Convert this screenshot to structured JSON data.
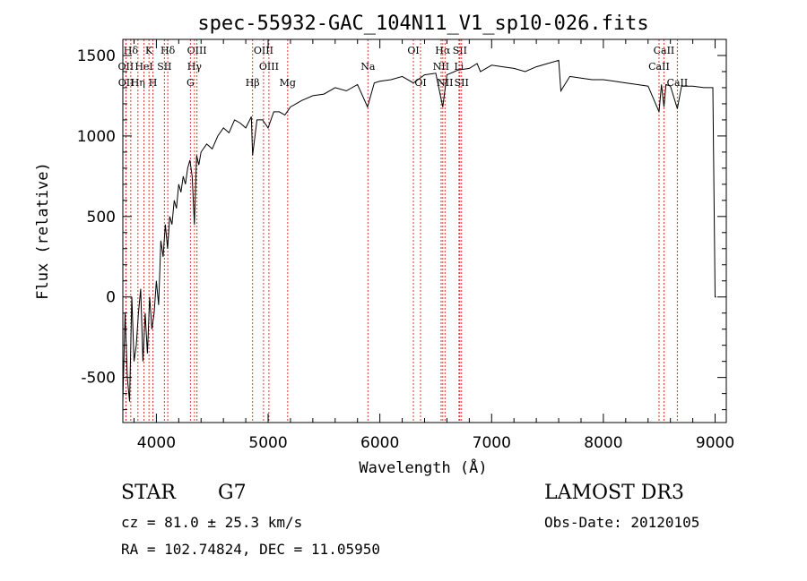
{
  "chart_data": {
    "type": "line",
    "title": "spec-55932-GAC_104N11_V1_sp10-026.fits",
    "xlabel": "Wavelength (Å)",
    "ylabel": "Flux (relative)",
    "xlim": [
      3700,
      9100
    ],
    "ylim": [
      -780,
      1600
    ],
    "x_ticks": [
      4000,
      5000,
      6000,
      7000,
      8000,
      9000
    ],
    "y_ticks": [
      -500,
      0,
      500,
      1000,
      1500
    ],
    "grid": false,
    "series": [
      {
        "name": "flux",
        "x": [
          3700,
          3720,
          3740,
          3760,
          3780,
          3800,
          3820,
          3840,
          3860,
          3880,
          3900,
          3920,
          3940,
          3960,
          3980,
          4000,
          4020,
          4040,
          4060,
          4080,
          4100,
          4120,
          4140,
          4160,
          4180,
          4200,
          4220,
          4240,
          4260,
          4280,
          4300,
          4320,
          4340,
          4360,
          4380,
          4400,
          4450,
          4500,
          4550,
          4600,
          4650,
          4700,
          4750,
          4800,
          4850,
          4861,
          4900,
          4950,
          5000,
          5050,
          5100,
          5150,
          5200,
          5250,
          5300,
          5400,
          5500,
          5600,
          5700,
          5800,
          5890,
          5950,
          6000,
          6100,
          6200,
          6300,
          6400,
          6500,
          6563,
          6600,
          6700,
          6800,
          6870,
          6900,
          7000,
          7100,
          7200,
          7300,
          7400,
          7500,
          7600,
          7620,
          7700,
          7800,
          7900,
          8000,
          8100,
          8200,
          8300,
          8400,
          8498,
          8520,
          8542,
          8560,
          8600,
          8662,
          8700,
          8800,
          8900,
          8980,
          9000,
          9010
        ],
        "values": [
          -650,
          -100,
          -500,
          -650,
          0,
          -400,
          -300,
          -100,
          50,
          -400,
          -100,
          -350,
          0,
          -200,
          -100,
          100,
          -50,
          350,
          250,
          450,
          300,
          500,
          450,
          600,
          550,
          700,
          650,
          750,
          700,
          800,
          850,
          750,
          450,
          880,
          820,
          900,
          950,
          920,
          1000,
          1050,
          1020,
          1100,
          1080,
          1050,
          1120,
          880,
          1100,
          1100,
          1050,
          1150,
          1150,
          1130,
          1180,
          1200,
          1220,
          1250,
          1260,
          1300,
          1280,
          1320,
          1180,
          1330,
          1340,
          1350,
          1370,
          1330,
          1380,
          1390,
          1180,
          1380,
          1410,
          1420,
          1450,
          1400,
          1440,
          1430,
          1420,
          1400,
          1430,
          1450,
          1470,
          1280,
          1370,
          1360,
          1350,
          1350,
          1340,
          1330,
          1320,
          1310,
          1150,
          1320,
          1180,
          1320,
          1310,
          1170,
          1310,
          1310,
          1300,
          1300,
          0,
          0
        ]
      }
    ],
    "line_markers": [
      {
        "label": "Hδ",
        "x": 3771,
        "row": 1
      },
      {
        "label": "OII",
        "x": 3727,
        "row": 2
      },
      {
        "label": "OII",
        "x": 3729,
        "row": 3
      },
      {
        "label": "K",
        "x": 3934,
        "row": 1
      },
      {
        "label": "HeI",
        "x": 3889,
        "row": 2
      },
      {
        "label": "Hη",
        "x": 3835,
        "row": 3
      },
      {
        "label": "Hδ",
        "x": 4102,
        "row": 1
      },
      {
        "label": "SII",
        "x": 4072,
        "row": 2
      },
      {
        "label": "H",
        "x": 3969,
        "row": 3
      },
      {
        "label": "OIII",
        "x": 4363,
        "row": 1
      },
      {
        "label": "Hγ",
        "x": 4341,
        "row": 2
      },
      {
        "label": "G",
        "x": 4305,
        "row": 3
      },
      {
        "label": "Hβ",
        "x": 4861,
        "row": 3
      },
      {
        "label": "OIII",
        "x": 4959,
        "row": 1
      },
      {
        "label": "OIII",
        "x": 5007,
        "row": 2
      },
      {
        "label": "Mg",
        "x": 5175,
        "row": 3
      },
      {
        "label": "Na",
        "x": 5893,
        "row": 2
      },
      {
        "label": "OI",
        "x": 6300,
        "row": 1
      },
      {
        "label": "OI",
        "x": 6364,
        "row": 3
      },
      {
        "label": "Hα",
        "x": 6563,
        "row": 1
      },
      {
        "label": "SII",
        "x": 6716,
        "row": 1
      },
      {
        "label": "NII",
        "x": 6548,
        "row": 2
      },
      {
        "label": "Li",
        "x": 6708,
        "row": 2
      },
      {
        "label": "NII",
        "x": 6583,
        "row": 3
      },
      {
        "label": "SII",
        "x": 6731,
        "row": 3
      },
      {
        "label": "CaII",
        "x": 8542,
        "row": 1
      },
      {
        "label": "CaII",
        "x": 8498,
        "row": 2
      },
      {
        "label": "CaII",
        "x": 8662,
        "row": 3
      }
    ]
  },
  "info": {
    "class": "STAR",
    "subclass": "G7",
    "survey": "LAMOST DR3",
    "cz": "cz = 81.0 ± 25.3 km/s",
    "obs_date": "Obs-Date: 20120105",
    "radec": "RA = 102.74824, DEC =  11.05950"
  }
}
